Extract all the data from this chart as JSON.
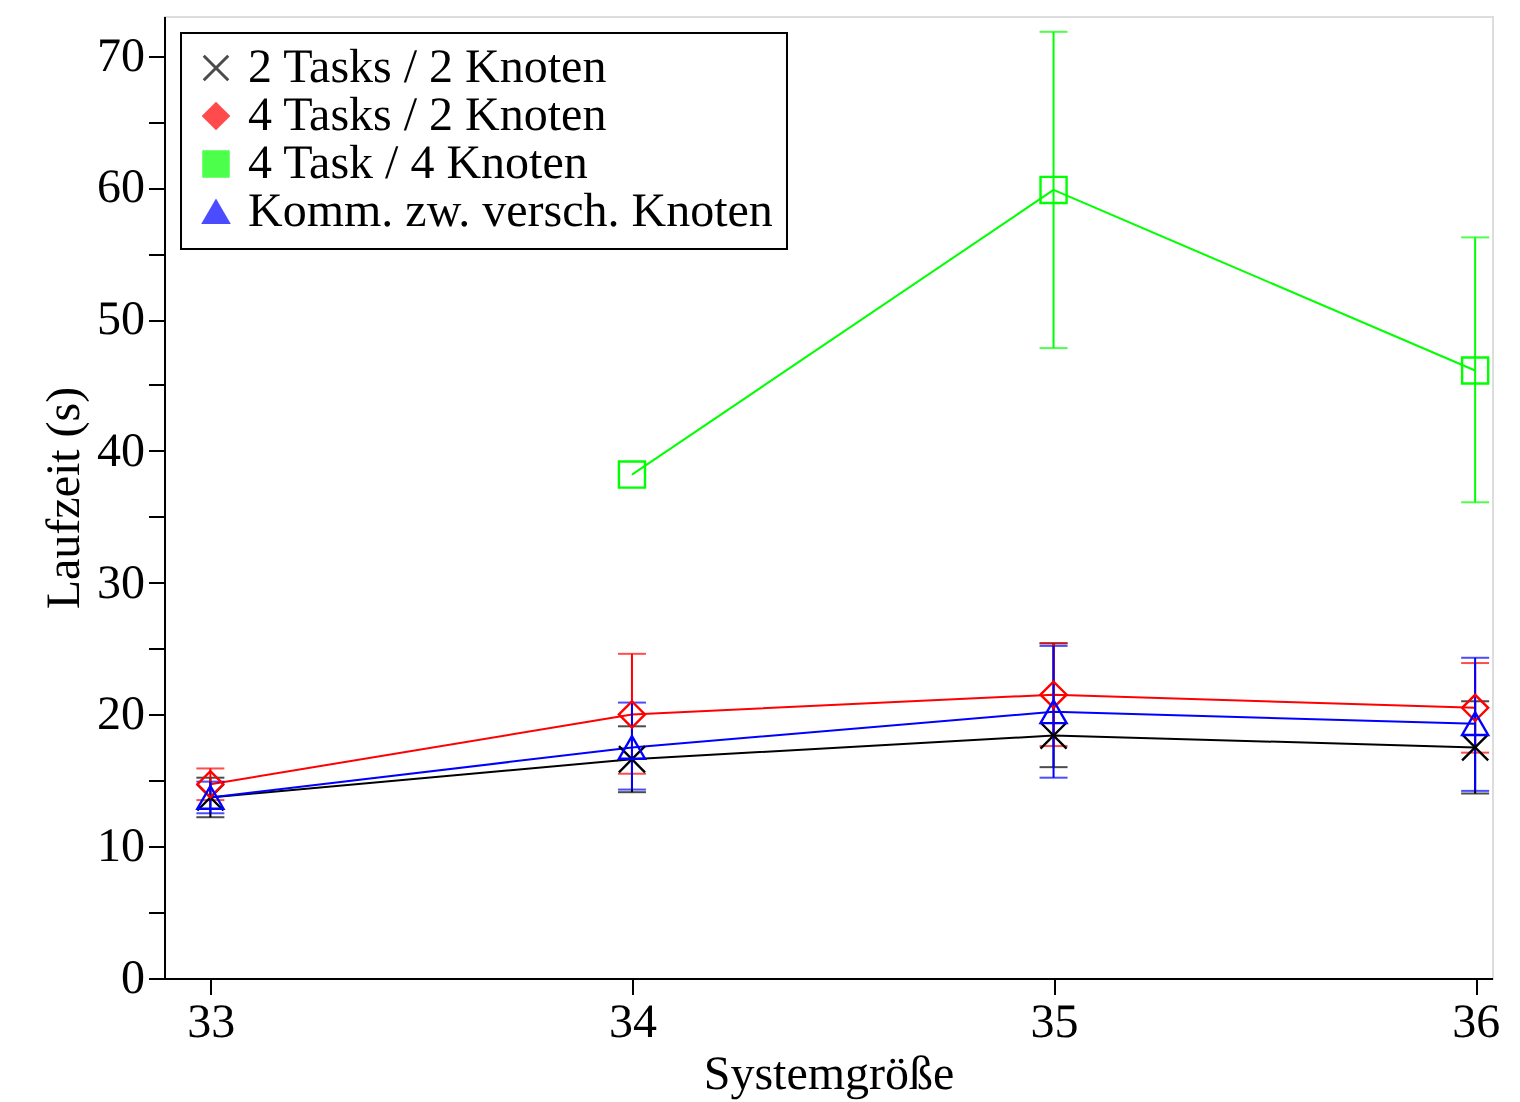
{
  "chart_data": {
    "type": "line",
    "xlabel": "Systemgröße",
    "ylabel": "Laufzeit (s)",
    "x": [
      33,
      34,
      35,
      36
    ],
    "xlim": [
      32.89,
      36.04
    ],
    "xticks": [
      33,
      34,
      35,
      36
    ],
    "ylim": [
      0,
      73
    ],
    "yticks": [
      0,
      {
        "value": 5,
        "label": null
      },
      10,
      {
        "value": 15,
        "label": null
      },
      20,
      {
        "value": 25,
        "label": null
      },
      30,
      {
        "value": 35,
        "label": null
      },
      40,
      {
        "value": 45,
        "label": null
      },
      50,
      {
        "value": 55,
        "label": null
      },
      60,
      {
        "value": 65,
        "label": null
      },
      70
    ],
    "grid": false,
    "legend": "top left",
    "line_style": "solid",
    "series": [
      {
        "name": "2 Tasks / 2 Knoten",
        "color": "#000000",
        "marker": "cross",
        "values": [
          13.7,
          16.6,
          18.4,
          17.5
        ],
        "errors": [
          1.5,
          2.5,
          [
            16.0,
            25.4
          ],
          [
            14.0,
            21.0
          ]
        ]
      },
      {
        "name": "4 Tasks / 2 Knoten",
        "color": "#ff0000",
        "marker": "diamond",
        "values": [
          14.7,
          20.0,
          21.5,
          20.5
        ],
        "errors": [
          1.2,
          [
            15.5,
            24.6
          ],
          [
            17.6,
            25.4
          ],
          [
            17.1,
            23.9
          ]
        ]
      },
      {
        "name": "4 Task / 4 Knoten",
        "color": "#00ff00",
        "marker": "square",
        "x": [
          34,
          35,
          36
        ],
        "values": [
          38.2,
          59.8,
          46.1
        ],
        "errors": [
          null,
          [
            47.8,
            71.8
          ],
          [
            36.1,
            56.2
          ]
        ]
      },
      {
        "name": "Komm. zw. versch. Knoten",
        "color": "#0000ff",
        "marker": "triangle",
        "values": [
          13.7,
          17.5,
          20.2,
          19.3
        ],
        "errors": [
          1.2,
          [
            14.3,
            20.9
          ],
          [
            15.2,
            25.2
          ],
          [
            14.2,
            24.3
          ]
        ]
      }
    ]
  }
}
